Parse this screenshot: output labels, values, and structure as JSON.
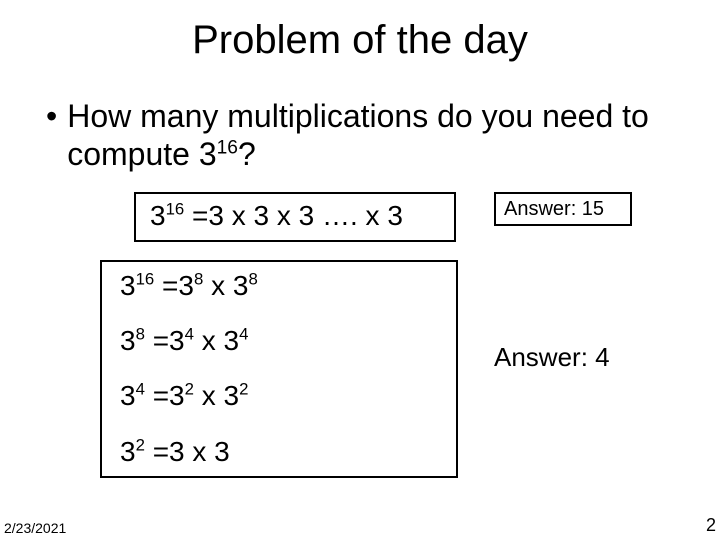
{
  "title": "Problem of the day",
  "bullet": {
    "mark": "•",
    "text_prefix": "How many multiplications do you need to compute 3",
    "exp": "16",
    "text_suffix": "?"
  },
  "box1": {
    "base": "3",
    "exp": "16",
    "eq": " =3 x 3 x 3 …. x 3"
  },
  "box2": {
    "lines": [
      {
        "lhs_base": "3",
        "lhs_exp": "16",
        "eq": " =3",
        "r1_exp": "8",
        "mid": " x 3",
        "r2_exp": "8"
      },
      {
        "lhs_base": "3",
        "lhs_exp": "8",
        "eq": " =3",
        "r1_exp": "4",
        "mid": " x 3",
        "r2_exp": "4"
      },
      {
        "lhs_base": "3",
        "lhs_exp": "4",
        "eq": " =3",
        "r1_exp": "2",
        "mid": " x 3",
        "r2_exp": "2"
      },
      {
        "lhs_base": "3",
        "lhs_exp": "2",
        "eq": " =3 x 3",
        "r1_exp": "",
        "mid": "",
        "r2_exp": ""
      }
    ]
  },
  "answers": {
    "a1": "Answer: 15",
    "a2": "Answer: 4"
  },
  "footer": {
    "date": "2/23/2021",
    "page": "2"
  },
  "style": {
    "title_fontsize": 40,
    "bullet_fontsize": 32,
    "box_fontsize": 28,
    "ans1_fontsize": 20,
    "ans2_fontsize": 26,
    "border_color": "#000000",
    "background_color": "#ffffff",
    "text_color": "#000000"
  }
}
